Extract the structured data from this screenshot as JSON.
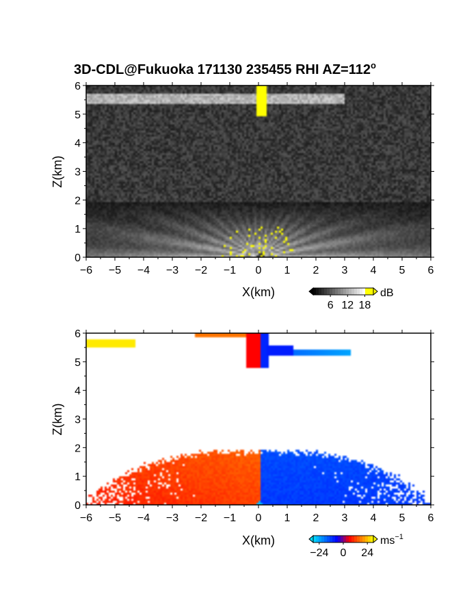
{
  "title": {
    "main": "3D-CDL@Fukuoka 171130 235455 RHI AZ=112",
    "degree": "o"
  },
  "chart_data": [
    {
      "type": "heatmap",
      "name": "reflectivity",
      "xlabel": "X(km)",
      "ylabel": "Z(km)",
      "xlim": [
        -6,
        6
      ],
      "ylim": [
        0,
        6
      ],
      "xticks": [
        "-6",
        "-5",
        "-4",
        "-3",
        "-2",
        "-1",
        "0",
        "1",
        "2",
        "3",
        "4",
        "5",
        "6"
      ],
      "yticks": [
        "0",
        "1",
        "2",
        "3",
        "4",
        "5",
        "6"
      ],
      "background": "noise",
      "colorbar": {
        "unit": "dB",
        "ticks": [
          "6",
          "12",
          "18"
        ],
        "range": [
          0,
          21
        ]
      },
      "features": {
        "boundary_layer_top_km": 1.9,
        "upper_layer_z_km": 5.55,
        "upper_layer_x_km": [
          -6,
          3
        ],
        "vertical_beam_x_km": 0.1
      }
    },
    {
      "type": "heatmap",
      "name": "doppler_velocity",
      "xlabel": "X(km)",
      "ylabel": "Z(km)",
      "xlim": [
        -6,
        6
      ],
      "ylim": [
        0,
        6
      ],
      "xticks": [
        "-6",
        "-5",
        "-4",
        "-3",
        "-2",
        "-1",
        "0",
        "1",
        "2",
        "3",
        "4",
        "5",
        "6"
      ],
      "yticks": [
        "0",
        "1",
        "2",
        "3",
        "4",
        "5",
        "6"
      ],
      "colorbar": {
        "unit": "ms",
        "unit_exp": "-1",
        "ticks": [
          "-24",
          "0",
          "24"
        ],
        "range": [
          -30,
          30
        ]
      },
      "features": {
        "boundary_layer_top_km": 1.85,
        "upper_layer_z_km": 5.5,
        "left_velocity_ms": 12,
        "right_velocity_ms": -12
      }
    }
  ],
  "colors": {
    "velocity_scale": [
      "#00e0ff",
      "#0070ff",
      "#0000ff",
      "#ff0000",
      "#ff8000",
      "#ffff00"
    ],
    "reflectivity_scale": [
      "#000000",
      "#ffffff",
      "#ffff00"
    ]
  }
}
